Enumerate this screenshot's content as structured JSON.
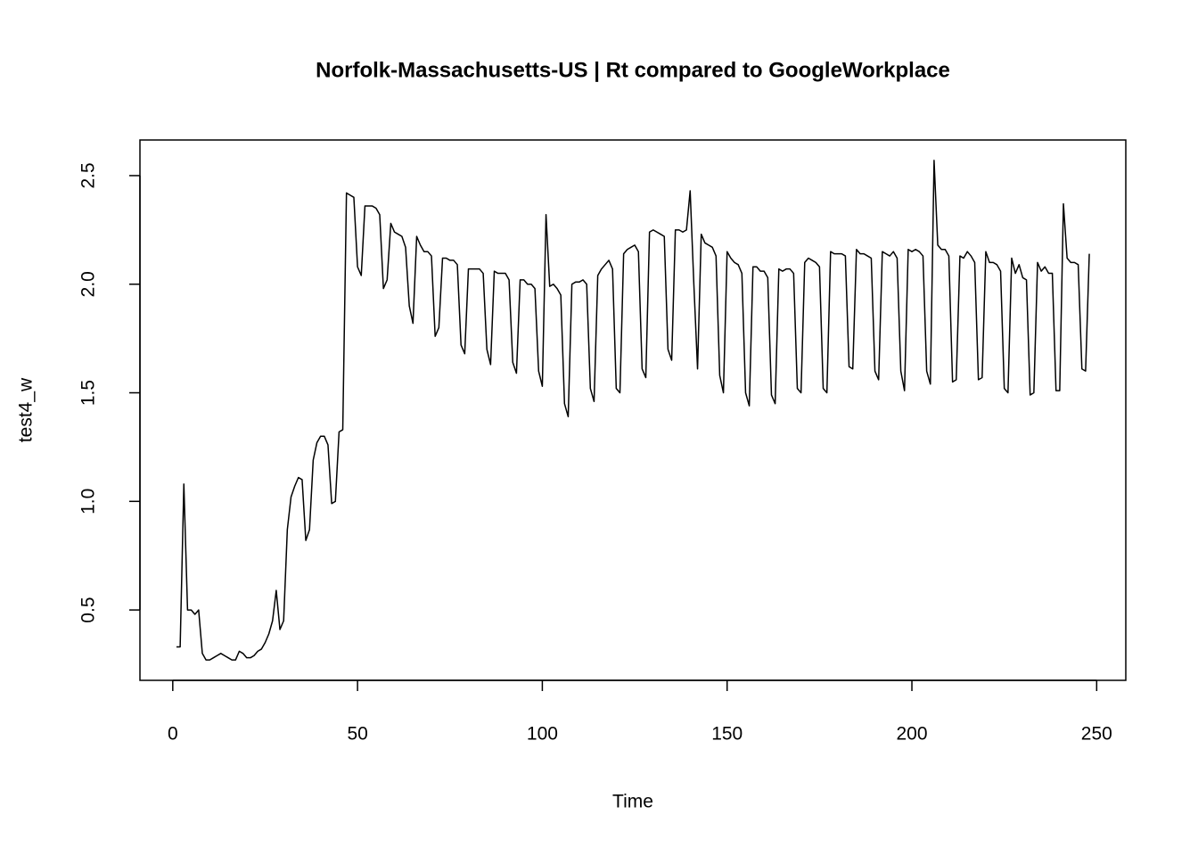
{
  "chart_data": {
    "type": "line",
    "title": "Norfolk-Massachusetts-US | Rt compared to GoogleWorkplace",
    "x_label": "Time",
    "y_label": "test4_w",
    "color": "#000000",
    "xlim": [
      -8.88,
      257.88
    ],
    "ylim": [
      0.176,
      2.664
    ],
    "xticks": [
      0,
      50,
      100,
      150,
      200,
      250
    ],
    "yticks": [
      0.5,
      {
        "value": 1,
        "label": "1.0"
      },
      1.5,
      {
        "value": 2,
        "label": "2.0"
      },
      2.5
    ],
    "x": [
      1,
      2,
      3,
      4,
      5,
      6,
      7,
      8,
      9,
      10,
      11,
      12,
      13,
      14,
      15,
      16,
      17,
      18,
      19,
      20,
      21,
      22,
      23,
      24,
      25,
      26,
      27,
      28,
      29,
      30,
      31,
      32,
      33,
      34,
      35,
      36,
      37,
      38,
      39,
      40,
      41,
      42,
      43,
      44,
      45,
      46,
      47,
      48,
      49,
      50,
      51,
      52,
      53,
      54,
      55,
      56,
      57,
      58,
      59,
      60,
      61,
      62,
      63,
      64,
      65,
      66,
      67,
      68,
      69,
      70,
      71,
      72,
      73,
      74,
      75,
      76,
      77,
      78,
      79,
      80,
      81,
      82,
      83,
      84,
      85,
      86,
      87,
      88,
      89,
      90,
      91,
      92,
      93,
      94,
      95,
      96,
      97,
      98,
      99,
      100,
      101,
      102,
      103,
      104,
      105,
      106,
      107,
      108,
      109,
      110,
      111,
      112,
      113,
      114,
      115,
      116,
      117,
      118,
      119,
      120,
      121,
      122,
      123,
      124,
      125,
      126,
      127,
      128,
      129,
      130,
      131,
      132,
      133,
      134,
      135,
      136,
      137,
      138,
      139,
      140,
      141,
      142,
      143,
      144,
      145,
      146,
      147,
      148,
      149,
      150,
      151,
      152,
      153,
      154,
      155,
      156,
      157,
      158,
      159,
      160,
      161,
      162,
      163,
      164,
      165,
      166,
      167,
      168,
      169,
      170,
      171,
      172,
      173,
      174,
      175,
      176,
      177,
      178,
      179,
      180,
      181,
      182,
      183,
      184,
      185,
      186,
      187,
      188,
      189,
      190,
      191,
      192,
      193,
      194,
      195,
      196,
      197,
      198,
      199,
      200,
      201,
      202,
      203,
      204,
      205,
      206,
      207,
      208,
      209,
      210,
      211,
      212,
      213,
      214,
      215,
      216,
      217,
      218,
      219,
      220,
      221,
      222,
      223,
      224,
      225,
      226,
      227,
      228,
      229,
      230,
      231,
      232,
      233,
      234,
      235,
      236,
      237,
      238,
      239,
      240,
      241,
      242,
      243,
      244,
      245,
      246,
      247,
      248
    ],
    "values": [
      0.33,
      0.33,
      1.08,
      0.5,
      0.5,
      0.48,
      0.5,
      0.3,
      0.27,
      0.27,
      0.28,
      0.29,
      0.3,
      0.29,
      0.28,
      0.27,
      0.27,
      0.31,
      0.3,
      0.28,
      0.28,
      0.29,
      0.31,
      0.32,
      0.35,
      0.39,
      0.45,
      0.59,
      0.41,
      0.45,
      0.87,
      1.02,
      1.07,
      1.11,
      1.1,
      0.82,
      0.87,
      1.19,
      1.27,
      1.3,
      1.3,
      1.26,
      0.99,
      1.0,
      1.32,
      1.33,
      2.42,
      2.41,
      2.4,
      2.08,
      2.04,
      2.36,
      2.36,
      2.36,
      2.35,
      2.32,
      1.98,
      2.02,
      2.28,
      2.24,
      2.23,
      2.22,
      2.17,
      1.9,
      1.82,
      2.22,
      2.18,
      2.15,
      2.15,
      2.13,
      1.76,
      1.8,
      2.12,
      2.12,
      2.11,
      2.11,
      2.09,
      1.72,
      1.68,
      2.07,
      2.07,
      2.07,
      2.07,
      2.05,
      1.7,
      1.63,
      2.06,
      2.05,
      2.05,
      2.05,
      2.02,
      1.64,
      1.59,
      2.02,
      2.02,
      2.0,
      2.0,
      1.98,
      1.6,
      1.53,
      2.32,
      1.99,
      2.0,
      1.98,
      1.95,
      1.45,
      1.39,
      2.0,
      2.01,
      2.01,
      2.02,
      2.0,
      1.52,
      1.46,
      2.04,
      2.07,
      2.09,
      2.11,
      2.07,
      1.52,
      1.5,
      2.14,
      2.16,
      2.17,
      2.18,
      2.15,
      1.61,
      1.57,
      2.24,
      2.25,
      2.24,
      2.23,
      2.22,
      1.7,
      1.65,
      2.25,
      2.25,
      2.24,
      2.25,
      2.43,
      2.0,
      1.61,
      2.23,
      2.19,
      2.18,
      2.17,
      2.13,
      1.58,
      1.5,
      2.15,
      2.12,
      2.1,
      2.09,
      2.05,
      1.5,
      1.44,
      2.08,
      2.08,
      2.06,
      2.06,
      2.03,
      1.49,
      1.45,
      2.07,
      2.06,
      2.07,
      2.07,
      2.05,
      1.52,
      1.5,
      2.1,
      2.12,
      2.11,
      2.1,
      2.08,
      1.52,
      1.5,
      2.15,
      2.14,
      2.14,
      2.14,
      2.13,
      1.62,
      1.61,
      2.16,
      2.14,
      2.14,
      2.13,
      2.12,
      1.6,
      1.56,
      2.15,
      2.14,
      2.13,
      2.15,
      2.12,
      1.6,
      1.51,
      2.16,
      2.15,
      2.16,
      2.15,
      2.13,
      1.6,
      1.54,
      2.57,
      2.18,
      2.16,
      2.16,
      2.13,
      1.55,
      1.56,
      2.13,
      2.12,
      2.15,
      2.13,
      2.1,
      1.56,
      1.57,
      2.15,
      2.1,
      2.1,
      2.09,
      2.06,
      1.52,
      1.5,
      2.12,
      2.05,
      2.09,
      2.03,
      2.02,
      1.49,
      1.5,
      2.1,
      2.06,
      2.08,
      2.05,
      2.05,
      1.51,
      1.51,
      2.37,
      2.12,
      2.1,
      2.1,
      2.09,
      1.61,
      1.6,
      2.14
    ]
  }
}
